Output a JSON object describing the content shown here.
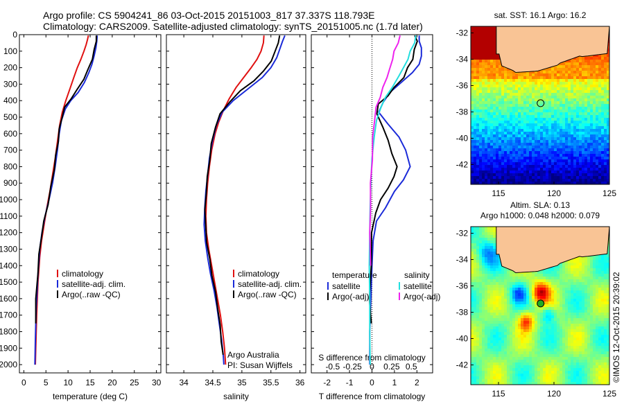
{
  "header": {
    "line1": "Argo profile: CS 5904241_86 03-Oct-2015 20151003_817 37.337S 118.793E",
    "line2": "Climatology: CARS2009. Satellite-adjusted climatology: synTS_20151005.nc (1.7d later)"
  },
  "colors": {
    "climatology": "#e01010",
    "satellite": "#1a2ad8",
    "argo": "#000000",
    "sal_satellite": "#22dede",
    "sal_argo": "#ee22ee",
    "land": "#f9c495"
  },
  "chart_data": [
    {
      "id": "temperature",
      "type": "line",
      "xlabel": "temperature (deg C)",
      "xlim": [
        -1,
        31
      ],
      "xticks": [
        0,
        5,
        10,
        15,
        20,
        25,
        30
      ],
      "ylim": [
        2050,
        0
      ],
      "yticks": [
        0,
        100,
        200,
        300,
        400,
        500,
        600,
        700,
        800,
        900,
        1000,
        1100,
        1200,
        1300,
        1400,
        1500,
        1600,
        1700,
        1800,
        1900,
        2000
      ],
      "legend": [
        "climatology",
        "satellite-adj. clim.",
        "Argo(..raw -QC)"
      ],
      "series": [
        {
          "name": "climatology",
          "color": "#e01010",
          "points": [
            [
              14.6,
              5
            ],
            [
              14.4,
              30
            ],
            [
              14.1,
              60
            ],
            [
              13.6,
              100
            ],
            [
              12.9,
              150
            ],
            [
              12.1,
              200
            ],
            [
              11.3,
              260
            ],
            [
              10.4,
              330
            ],
            [
              9.5,
              400
            ],
            [
              8.7,
              470
            ],
            [
              8.1,
              550
            ],
            [
              7.6,
              650
            ],
            [
              7.1,
              750
            ],
            [
              6.5,
              850
            ],
            [
              5.9,
              950
            ],
            [
              5.2,
              1050
            ],
            [
              4.6,
              1150
            ],
            [
              4.0,
              1250
            ],
            [
              3.6,
              1350
            ],
            [
              3.2,
              1500
            ],
            [
              2.9,
              1700
            ],
            [
              2.7,
              1900
            ],
            [
              2.6,
              2000
            ]
          ]
        },
        {
          "name": "satellite-adj. clim.",
          "color": "#1a2ad8",
          "points": [
            [
              16.6,
              5
            ],
            [
              16.5,
              40
            ],
            [
              16.3,
              80
            ],
            [
              15.9,
              130
            ],
            [
              15.4,
              180
            ],
            [
              14.7,
              230
            ],
            [
              13.7,
              290
            ],
            [
              12.3,
              350
            ],
            [
              10.6,
              400
            ],
            [
              9.4,
              450
            ],
            [
              8.5,
              520
            ],
            [
              8.0,
              600
            ],
            [
              7.6,
              700
            ],
            [
              7.1,
              800
            ],
            [
              6.5,
              900
            ],
            [
              5.7,
              1000
            ],
            [
              4.8,
              1100
            ],
            [
              4.1,
              1200
            ],
            [
              3.6,
              1300
            ],
            [
              3.2,
              1450
            ],
            [
              2.8,
              1650
            ],
            [
              2.6,
              1850
            ],
            [
              2.5,
              2000
            ]
          ]
        },
        {
          "name": "Argo(..raw -QC)",
          "color": "#000000",
          "points": [
            [
              16.4,
              5
            ],
            [
              16.3,
              40
            ],
            [
              16.0,
              90
            ],
            [
              15.4,
              150
            ],
            [
              14.6,
              210
            ],
            [
              13.5,
              270
            ],
            [
              12.2,
              330
            ],
            [
              10.6,
              390
            ],
            [
              9.3,
              440
            ],
            [
              8.6,
              500
            ],
            [
              8.1,
              570
            ],
            [
              7.7,
              650
            ],
            [
              7.3,
              730
            ],
            [
              6.8,
              820
            ],
            [
              6.2,
              920
            ],
            [
              5.4,
              1030
            ],
            [
              4.6,
              1130
            ],
            [
              3.9,
              1230
            ],
            [
              3.5,
              1330
            ],
            [
              3.1,
              1450
            ],
            [
              2.8,
              1600
            ],
            [
              2.6,
              1750
            ]
          ]
        }
      ]
    },
    {
      "id": "salinity",
      "type": "line",
      "xlabel": "salinity",
      "xlim": [
        33.7,
        36.1
      ],
      "xticks": [
        34,
        34.5,
        35,
        35.5,
        36
      ],
      "ylim": [
        2050,
        0
      ],
      "legend": [
        "climatology",
        "satellite-adj. clim.",
        "Argo(..raw -QC)"
      ],
      "annotation": [
        "Argo Australia",
        "PI: Susan Wijffels"
      ],
      "series": [
        {
          "name": "climatology",
          "color": "#e01010",
          "points": [
            [
              35.38,
              5
            ],
            [
              35.37,
              50
            ],
            [
              35.33,
              100
            ],
            [
              35.26,
              150
            ],
            [
              35.16,
              200
            ],
            [
              35.03,
              260
            ],
            [
              34.9,
              320
            ],
            [
              34.78,
              390
            ],
            [
              34.68,
              460
            ],
            [
              34.6,
              530
            ],
            [
              34.54,
              600
            ],
            [
              34.48,
              700
            ],
            [
              34.44,
              800
            ],
            [
              34.41,
              900
            ],
            [
              34.39,
              1000
            ],
            [
              34.38,
              1100
            ],
            [
              34.39,
              1200
            ],
            [
              34.43,
              1300
            ],
            [
              34.48,
              1400
            ],
            [
              34.53,
              1500
            ],
            [
              34.58,
              1600
            ],
            [
              34.63,
              1700
            ],
            [
              34.67,
              1800
            ],
            [
              34.7,
              1900
            ],
            [
              34.72,
              2000
            ]
          ]
        },
        {
          "name": "satellite-adj. clim.",
          "color": "#1a2ad8",
          "points": [
            [
              35.74,
              5
            ],
            [
              35.7,
              40
            ],
            [
              35.65,
              90
            ],
            [
              35.6,
              140
            ],
            [
              35.5,
              200
            ],
            [
              35.35,
              260
            ],
            [
              35.1,
              330
            ],
            [
              34.85,
              400
            ],
            [
              34.66,
              470
            ],
            [
              34.56,
              550
            ],
            [
              34.49,
              650
            ],
            [
              34.44,
              750
            ],
            [
              34.41,
              850
            ],
            [
              34.38,
              950
            ],
            [
              34.36,
              1050
            ],
            [
              34.35,
              1150
            ],
            [
              34.37,
              1250
            ],
            [
              34.41,
              1350
            ],
            [
              34.46,
              1450
            ],
            [
              34.52,
              1550
            ],
            [
              34.57,
              1650
            ],
            [
              34.61,
              1750
            ],
            [
              34.65,
              1850
            ],
            [
              34.68,
              1950
            ],
            [
              34.69,
              2000
            ]
          ]
        },
        {
          "name": "Argo(..raw -QC)",
          "color": "#000000",
          "points": [
            [
              35.65,
              5
            ],
            [
              35.62,
              50
            ],
            [
              35.58,
              100
            ],
            [
              35.5,
              160
            ],
            [
              35.38,
              220
            ],
            [
              35.2,
              280
            ],
            [
              34.98,
              340
            ],
            [
              34.78,
              410
            ],
            [
              34.63,
              480
            ],
            [
              34.54,
              560
            ],
            [
              34.48,
              660
            ],
            [
              34.44,
              760
            ],
            [
              34.41,
              860
            ],
            [
              34.38,
              960
            ],
            [
              34.37,
              1060
            ],
            [
              34.37,
              1160
            ],
            [
              34.4,
              1260
            ],
            [
              34.44,
              1360
            ],
            [
              34.49,
              1460
            ],
            [
              34.54,
              1560
            ],
            [
              34.59,
              1660
            ],
            [
              34.62,
              1760
            ],
            [
              34.65,
              1860
            ],
            [
              34.67,
              1940
            ]
          ]
        }
      ]
    },
    {
      "id": "differences",
      "type": "line",
      "xlabel": "T difference from climatology",
      "xlabel_top": "S difference from climatology",
      "xlim": [
        -2.7,
        2.7
      ],
      "xticks": [
        -2,
        -1,
        0,
        1,
        2
      ],
      "xticks_s": [
        {
          "label": "-0.5",
          "at": -1.75
        },
        {
          "label": "-0.25",
          "at": -0.875
        },
        {
          "label": "0",
          "at": 0
        },
        {
          "label": "0.25",
          "at": 0.875
        },
        {
          "label": "0.5",
          "at": 1.75
        }
      ],
      "ylim": [
        2050,
        0
      ],
      "legend_temperature": {
        "title": "temperature",
        "items": [
          "satellite",
          "Argo(-adj)"
        ]
      },
      "legend_salinity": {
        "title": "salinity",
        "items": [
          "satellite",
          "Argo(-adj)"
        ]
      },
      "series": [
        {
          "name": "temperature satellite",
          "color": "#1a2ad8",
          "points": [
            [
              2.1,
              5
            ],
            [
              2.1,
              40
            ],
            [
              2.2,
              80
            ],
            [
              2.2,
              130
            ],
            [
              2.1,
              180
            ],
            [
              1.8,
              230
            ],
            [
              1.3,
              290
            ],
            [
              0.8,
              350
            ],
            [
              0.5,
              410
            ],
            [
              0.3,
              470
            ],
            [
              0.7,
              540
            ],
            [
              1.2,
              620
            ],
            [
              1.5,
              700
            ],
            [
              1.7,
              800
            ],
            [
              1.4,
              880
            ],
            [
              1.0,
              950
            ],
            [
              0.6,
              1050
            ],
            [
              0.2,
              1130
            ],
            [
              0.05,
              1250
            ],
            [
              0.0,
              1400
            ],
            [
              -0.05,
              1600
            ],
            [
              -0.1,
              1800
            ],
            [
              -0.1,
              2000
            ]
          ]
        },
        {
          "name": "temperature Argo(-adj)",
          "color": "#000000",
          "points": [
            [
              1.9,
              5
            ],
            [
              2.0,
              40
            ],
            [
              1.9,
              90
            ],
            [
              1.8,
              150
            ],
            [
              1.6,
              200
            ],
            [
              1.4,
              260
            ],
            [
              1.0,
              320
            ],
            [
              0.7,
              370
            ],
            [
              0.3,
              420
            ],
            [
              0.2,
              480
            ],
            [
              0.5,
              560
            ],
            [
              0.7,
              640
            ],
            [
              0.9,
              720
            ],
            [
              1.1,
              800
            ],
            [
              1.0,
              860
            ],
            [
              0.7,
              930
            ],
            [
              0.4,
              1000
            ],
            [
              0.15,
              1080
            ],
            [
              0.0,
              1200
            ],
            [
              -0.05,
              1400
            ],
            [
              -0.1,
              1600
            ],
            [
              -0.05,
              1750
            ]
          ]
        },
        {
          "name": "salinity satellite",
          "color": "#22dede",
          "points": [
            [
              1.95,
              5
            ],
            [
              1.9,
              50
            ],
            [
              1.7,
              100
            ],
            [
              1.6,
              150
            ],
            [
              1.4,
              200
            ],
            [
              1.2,
              250
            ],
            [
              0.9,
              320
            ],
            [
              0.6,
              380
            ],
            [
              0.4,
              440
            ],
            [
              0.2,
              520
            ],
            [
              0.1,
              620
            ],
            [
              0.0,
              750
            ],
            [
              -0.05,
              900
            ],
            [
              -0.08,
              1050
            ],
            [
              -0.1,
              1200
            ],
            [
              -0.12,
              1400
            ],
            [
              -0.1,
              1600
            ],
            [
              -0.1,
              1800
            ],
            [
              -0.08,
              2000
            ]
          ]
        },
        {
          "name": "salinity Argo(-adj)",
          "color": "#ee22ee",
          "points": [
            [
              1.25,
              5
            ],
            [
              1.15,
              50
            ],
            [
              1.0,
              100
            ],
            [
              0.9,
              150
            ],
            [
              0.8,
              210
            ],
            [
              0.65,
              260
            ],
            [
              0.5,
              320
            ],
            [
              0.35,
              380
            ],
            [
              0.2,
              440
            ],
            [
              0.1,
              520
            ],
            [
              0.05,
              620
            ],
            [
              0.0,
              760
            ],
            [
              -0.05,
              900
            ],
            [
              -0.08,
              1050
            ],
            [
              -0.08,
              1200
            ],
            [
              -0.08,
              1400
            ]
          ]
        }
      ]
    },
    {
      "id": "sst-map",
      "type": "heatmap",
      "title": "sat. SST: 16.1 Argo: 16.2",
      "xticks": [
        115,
        120,
        125
      ],
      "yticks": [
        -32,
        -34,
        -36,
        -38,
        -40,
        -42
      ],
      "lon_range": [
        112.5,
        125
      ],
      "lat_range": [
        -43.5,
        -31.5
      ],
      "argo_position": {
        "lon": 118.793,
        "lat": -37.337
      }
    },
    {
      "id": "sla-map",
      "type": "heatmap",
      "title_line1": "Altim. SLA: 0.13",
      "title_line2": "Argo h1000: 0.048 h2000: 0.079",
      "xticks": [
        115,
        120,
        125
      ],
      "yticks": [
        -32,
        -34,
        -36,
        -38,
        -40,
        -42
      ],
      "lon_range": [
        112.5,
        125
      ],
      "lat_range": [
        -43.5,
        -31.5
      ],
      "argo_position": {
        "lon": 118.793,
        "lat": -37.337
      }
    }
  ],
  "credit": "©IMOS 12-Oct-2015 20:39:02"
}
